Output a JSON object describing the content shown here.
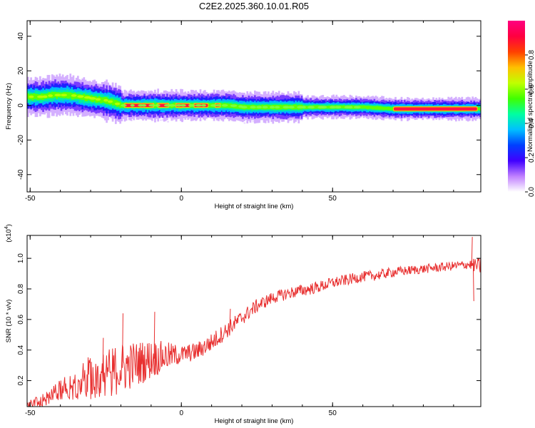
{
  "title": "C2E2.2025.360.10.01.R05",
  "chart_data": [
    {
      "type": "heatmap",
      "name": "spectrogram",
      "xlabel": "Height of straight line (km)",
      "ylabel": "Frequency (Hz)",
      "xlim": [
        -51,
        99
      ],
      "ylim": [
        -50,
        49
      ],
      "xticks": [
        -50,
        0,
        50
      ],
      "xtick_labels": [
        "-50",
        "0",
        "50"
      ],
      "yticks": [
        40,
        20,
        0,
        -20,
        -40
      ],
      "ytick_labels": [
        "40",
        "20",
        "0",
        "-20",
        "-40"
      ],
      "colorbar": {
        "label": "Normalized spectral amplitude",
        "range": [
          0,
          1
        ],
        "ticks": [
          0.0,
          0.2,
          0.4,
          0.6,
          0.8
        ],
        "tick_labels": [
          "0.0",
          "0.2",
          "0.4",
          "0.6",
          "0.8"
        ],
        "colormap": [
          "#ffffff",
          "#c080ff",
          "#4000ff",
          "#0040ff",
          "#00c0ff",
          "#00ffa0",
          "#40ff00",
          "#c0ff00",
          "#ffc000",
          "#ff4000",
          "#ff0040",
          "#ff0080"
        ]
      },
      "band_center": {
        "x": [
          -51,
          -46,
          -42,
          -38,
          -34,
          -30,
          -26,
          -23,
          -20,
          -15,
          -10,
          -5,
          0,
          5,
          10,
          15,
          20,
          30,
          40,
          50,
          60,
          70,
          80,
          90,
          99
        ],
        "y": [
          5,
          5,
          6,
          6,
          5,
          4,
          3,
          2,
          0,
          0,
          0,
          0,
          0,
          0,
          0,
          0,
          -1,
          -1,
          -1,
          -1,
          -1,
          -2,
          -2,
          -2,
          -2
        ]
      },
      "peak_segments": [
        [
          -19,
          -9
        ],
        [
          -8,
          -4
        ],
        [
          -2,
          3
        ],
        [
          4,
          9
        ],
        [
          11,
          13
        ],
        [
          70,
          98
        ]
      ]
    },
    {
      "type": "line",
      "name": "snr",
      "xlabel": "Height of straight line (km)",
      "ylabel": "SNR (10 * v/v)",
      "multiplier_label": "(x10",
      "multiplier_exp": "4",
      "multiplier_close": ")",
      "xlim": [
        -51,
        99
      ],
      "ylim": [
        0.03,
        1.15
      ],
      "xticks": [
        -50,
        0,
        50
      ],
      "xtick_labels": [
        "-50",
        "0",
        "50"
      ],
      "yticks": [
        0.2,
        0.4,
        0.6,
        0.8,
        1.0
      ],
      "ytick_labels": [
        "0.2",
        "0.4",
        "0.6",
        "0.8",
        "1.0"
      ],
      "line_color": "#e83030",
      "trend": {
        "x": [
          -51,
          -45,
          -40,
          -35,
          -30,
          -25,
          -20,
          -15,
          -10,
          -5,
          0,
          5,
          10,
          15,
          20,
          25,
          30,
          35,
          40,
          45,
          50,
          55,
          60,
          65,
          70,
          75,
          80,
          85,
          90,
          95,
          99
        ],
        "y": [
          0.04,
          0.08,
          0.14,
          0.18,
          0.22,
          0.25,
          0.28,
          0.31,
          0.34,
          0.36,
          0.37,
          0.39,
          0.45,
          0.53,
          0.61,
          0.69,
          0.74,
          0.77,
          0.79,
          0.81,
          0.84,
          0.86,
          0.88,
          0.89,
          0.91,
          0.92,
          0.93,
          0.94,
          0.95,
          0.96,
          0.95
        ]
      },
      "noise": {
        "x": [
          -51,
          -40,
          -30,
          -20,
          -10,
          0,
          10,
          20,
          30,
          40,
          60,
          80,
          95,
          99
        ],
        "amp": [
          0.02,
          0.07,
          0.15,
          0.17,
          0.13,
          0.06,
          0.06,
          0.05,
          0.04,
          0.04,
          0.035,
          0.03,
          0.03,
          0.06
        ]
      },
      "spikes": [
        {
          "x": -19.5,
          "y": 0.64
        },
        {
          "x": -26,
          "y": 0.48
        },
        {
          "x": -9,
          "y": 0.65
        },
        {
          "x": 16,
          "y": 0.67
        },
        {
          "x": 96,
          "y": 1.14
        },
        {
          "x": 96.5,
          "y": 0.72
        }
      ]
    }
  ]
}
